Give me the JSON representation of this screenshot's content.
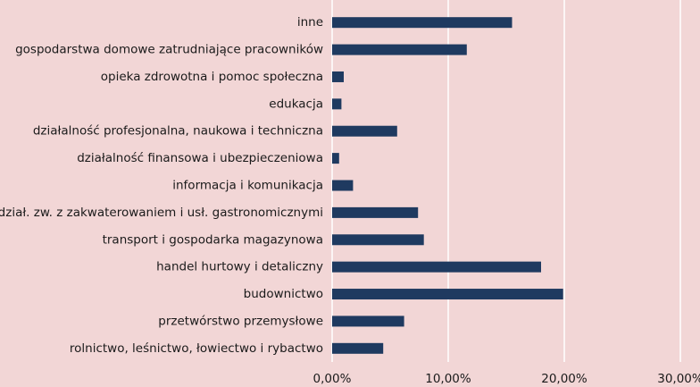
{
  "chart_data": {
    "type": "bar",
    "orientation": "horizontal",
    "categories": [
      "inne",
      "gospodarstwa domowe zatrudniające pracowników",
      "opieka zdrowotna i pomoc społeczna",
      "edukacja",
      "działalność profesjonalna, naukowa i techniczna",
      "działalność finansowa i ubezpieczeniowa",
      "informacja i komunikacja",
      "dział. zw. z zakwaterowaniem i usł. gastronomicznymi",
      "transport i gospodarka magazynowa",
      "handel hurtowy i detaliczny",
      "budownictwo",
      "przetwórstwo przemysłowe",
      "rolnictwo, leśnictwo, łowiectwo i rybactwo"
    ],
    "values": [
      15.5,
      11.6,
      1.0,
      0.8,
      5.6,
      0.6,
      1.8,
      7.4,
      7.9,
      18.0,
      19.9,
      6.2,
      4.4
    ],
    "color": "#1f3a60",
    "xlim": [
      0,
      30
    ],
    "xticks": [
      {
        "value": 0,
        "label": "0,00%"
      },
      {
        "value": 10,
        "label": "10,00%"
      },
      {
        "value": 20,
        "label": "20,00%"
      },
      {
        "value": 30,
        "label": "30,00%"
      }
    ],
    "grid": true
  }
}
